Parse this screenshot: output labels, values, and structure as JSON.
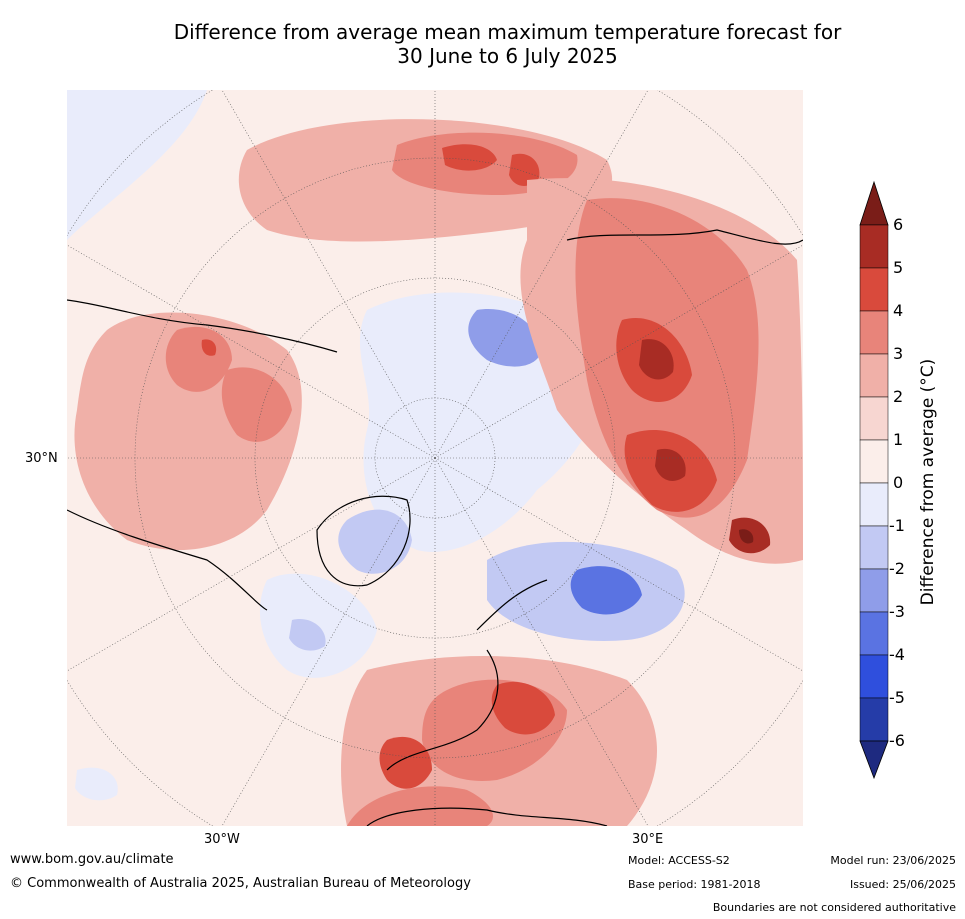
{
  "title": {
    "line1": "Difference from average mean maximum temperature forecast for",
    "line2": "30 June to 6 July 2025"
  },
  "map": {
    "lon_labels": [
      "30°W",
      "30°E"
    ],
    "lat_labels": [
      "30°N"
    ]
  },
  "colorbar": {
    "label": "Difference from average (°C)",
    "ticks": [
      "6",
      "5",
      "4",
      "3",
      "2",
      "1",
      "0",
      "-1",
      "-2",
      "-3",
      "-4",
      "-5",
      "-6"
    ],
    "colors": [
      "#7a1d18",
      "#a82c24",
      "#d94a3c",
      "#e8847a",
      "#f0b0a8",
      "#f7d6d1",
      "#fbeeea",
      "#e9ecfb",
      "#c2c9f3",
      "#8f9de9",
      "#5a73e2",
      "#2f4fdd",
      "#253ca8",
      "#1e2a80"
    ]
  },
  "footer": {
    "website": "www.bom.gov.au/climate",
    "copyright": "© Commonwealth of Australia 2025, Australian Bureau of Meteorology",
    "model": "Model: ACCESS-S2",
    "base_period": "Base period: 1981-2018",
    "model_run": "Model run: 23/06/2025",
    "issued": "Issued: 25/06/2025",
    "disclaimer": "Boundaries are not considered authoritative"
  }
}
